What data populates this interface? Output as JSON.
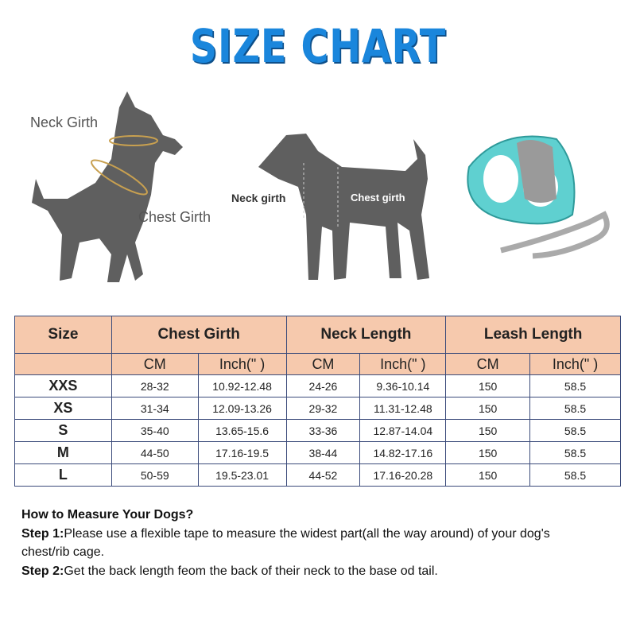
{
  "title": "SIZE CHART",
  "illustrations": {
    "cat": {
      "neck_label": "Neck Girth",
      "chest_label": "Chest Girth"
    },
    "dog": {
      "neck_label": "Neck girth",
      "chest_label": "Chest girth"
    },
    "harness": {
      "color": "#5fd0d0"
    }
  },
  "table": {
    "headers": [
      "Size",
      "Chest Girth",
      "Neck Length",
      "Leash Length"
    ],
    "subheaders": [
      "CM",
      "Inch(\" )",
      "CM",
      "Inch(\" )",
      "CM",
      "Inch(\" )"
    ],
    "rows": [
      [
        "XXS",
        "28-32",
        "10.92-12.48",
        "24-26",
        "9.36-10.14",
        "150",
        "58.5"
      ],
      [
        "XS",
        "31-34",
        "12.09-13.26",
        "29-32",
        "11.31-12.48",
        "150",
        "58.5"
      ],
      [
        "S",
        "35-40",
        "13.65-15.6",
        "33-36",
        "12.87-14.04",
        "150",
        "58.5"
      ],
      [
        "M",
        "44-50",
        "17.16-19.5",
        "38-44",
        "14.82-17.16",
        "150",
        "58.5"
      ],
      [
        "L",
        "50-59",
        "19.5-23.01",
        "44-52",
        "17.16-20.28",
        "150",
        "58.5"
      ]
    ],
    "header_color": "#f6c9ad"
  },
  "instructions": {
    "heading": "How to Measure Your Dogs?",
    "step1_label": "Step 1:",
    "step1_text": "Please use a flexible tape to measure the widest part(all the way around) of your dog's chest/rib cage.",
    "step2_label": "Step 2:",
    "step2_text": "Get the back length feom the back of their neck to the base od tail."
  }
}
